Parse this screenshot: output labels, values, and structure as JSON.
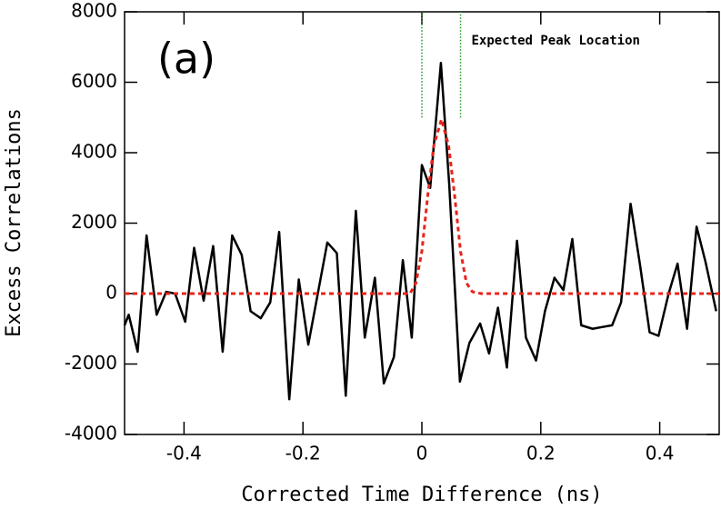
{
  "chart_data": {
    "type": "line",
    "panel_label": "(a)",
    "xlabel": "Corrected Time Difference (ns)",
    "ylabel": "Excess Correlations",
    "xlim": [
      -0.5,
      0.5
    ],
    "ylim": [
      -4000,
      8000
    ],
    "xticks": [
      -0.4,
      -0.2,
      0,
      0.2,
      0.4
    ],
    "yticks": [
      -4000,
      -2000,
      0,
      2000,
      4000,
      6000,
      8000
    ],
    "series": [
      {
        "color": "#000000",
        "style": "solid",
        "x": [
          -0.5,
          -0.493,
          -0.478,
          -0.463,
          -0.446,
          -0.43,
          -0.415,
          -0.398,
          -0.383,
          -0.367,
          -0.351,
          -0.335,
          -0.319,
          -0.303,
          -0.288,
          -0.271,
          -0.255,
          -0.24,
          -0.223,
          -0.207,
          -0.191,
          -0.175,
          -0.159,
          -0.143,
          -0.128,
          -0.111,
          -0.096,
          -0.079,
          -0.064,
          -0.047,
          -0.032,
          -0.017,
          0,
          0.014,
          0.032,
          0.046,
          0.064,
          0.08,
          0.098,
          0.113,
          0.128,
          0.143,
          0.16,
          0.175,
          0.192,
          0.207,
          0.223,
          0.238,
          0.253,
          0.268,
          0.287,
          0.303,
          0.32,
          0.335,
          0.351,
          0.367,
          0.383,
          0.398,
          0.415,
          0.43,
          0.446,
          0.462,
          0.477,
          0.495
        ],
        "values": [
          -900,
          -600,
          -1650,
          1650,
          -600,
          50,
          0,
          -800,
          1300,
          -200,
          1350,
          -1650,
          1650,
          1100,
          -500,
          -700,
          -250,
          1750,
          -3000,
          400,
          -1450,
          0,
          1450,
          1150,
          -2900,
          2350,
          -1250,
          450,
          -2550,
          -1800,
          950,
          -1250,
          3650,
          3000,
          6550,
          3100,
          -2500,
          -1400,
          -850,
          -1700,
          -400,
          -2100,
          1500,
          -1250,
          -1900,
          -500,
          450,
          100,
          1550,
          -900,
          -1000,
          -950,
          -900,
          -250,
          2550,
          800,
          -1100,
          -1200,
          0,
          850,
          -1000,
          1900,
          900,
          -500
        ]
      },
      {
        "color": "#e8231b",
        "style": "dashed",
        "x": [
          -0.5,
          -0.02,
          -0.01,
          0,
          0.01,
          0.02,
          0.033,
          0.045,
          0.055,
          0.065,
          0.075,
          0.085,
          0.1,
          0.5
        ],
        "values": [
          0,
          0,
          300,
          1200,
          2800,
          4200,
          4950,
          4200,
          2800,
          1200,
          300,
          50,
          0,
          0
        ]
      }
    ],
    "expected_peak": {
      "label": "Expected Peak Location",
      "color": "#1a9a1a",
      "x": [
        0,
        0.065
      ],
      "y_from": 5000
    }
  }
}
